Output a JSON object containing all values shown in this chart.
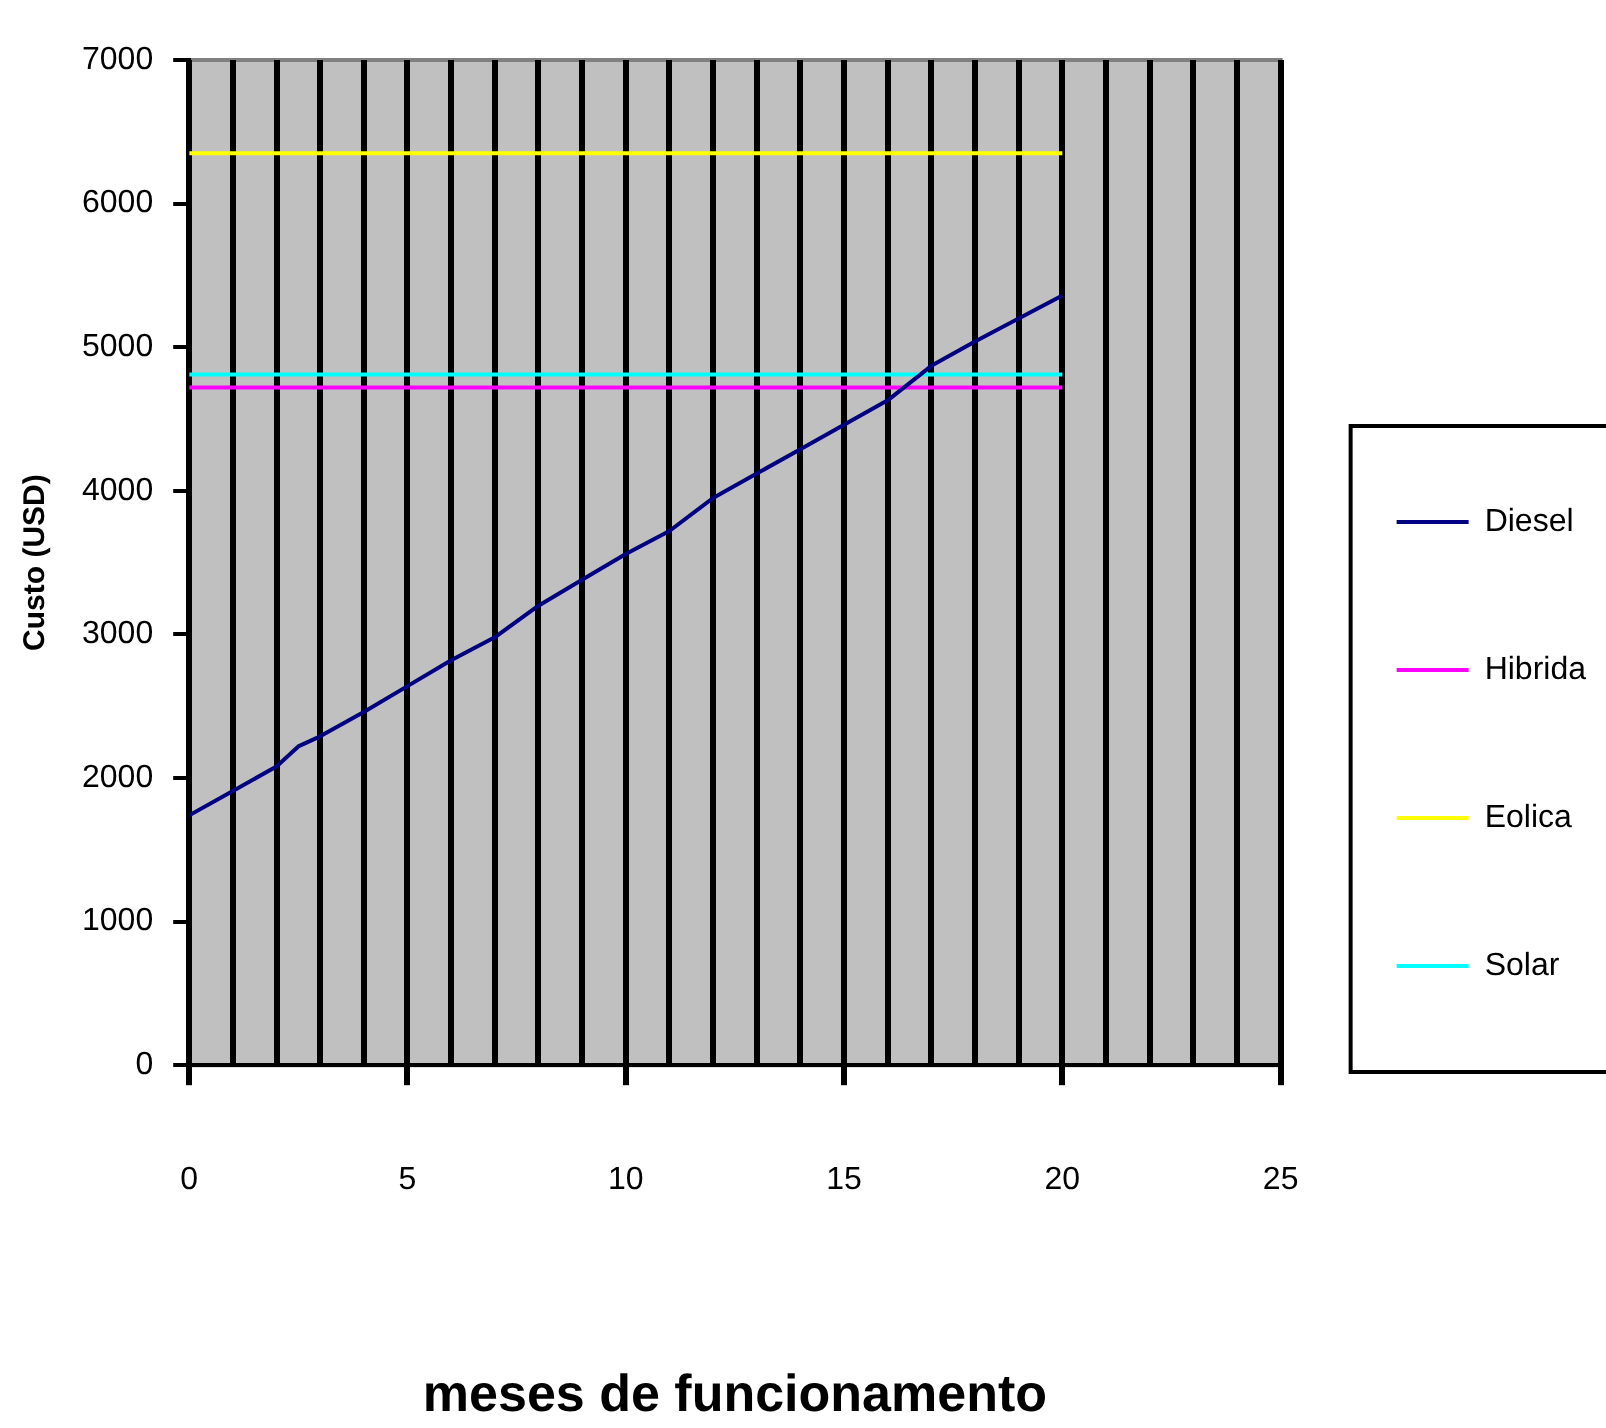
{
  "chart_data": {
    "type": "line",
    "xlabel": "meses de funcionamento",
    "ylabel": "Custo (USD)",
    "x": [
      0,
      1,
      2,
      2.5,
      3,
      4,
      5,
      6,
      7,
      8,
      9,
      10,
      11,
      12,
      13,
      14,
      15,
      16,
      17,
      18,
      19,
      20
    ],
    "series": [
      {
        "name": "Diesel",
        "color": "#000080",
        "values": [
          1740,
          1910,
          2080,
          2220,
          2290,
          2460,
          2640,
          2820,
          2980,
          3200,
          3380,
          3560,
          3720,
          3950,
          4120,
          4290,
          4460,
          4630,
          4870,
          5040,
          5200,
          5360
        ]
      },
      {
        "name": "Hibrida",
        "color": "#ff00ff",
        "values": [
          4720,
          4720,
          4720,
          4720,
          4720,
          4720,
          4720,
          4720,
          4720,
          4720,
          4720,
          4720,
          4720,
          4720,
          4720,
          4720,
          4720,
          4720,
          4720,
          4720,
          4720,
          4720
        ]
      },
      {
        "name": "Eolica",
        "color": "#ffff00",
        "values": [
          6350,
          6350,
          6350,
          6350,
          6350,
          6350,
          6350,
          6350,
          6350,
          6350,
          6350,
          6350,
          6350,
          6350,
          6350,
          6350,
          6350,
          6350,
          6350,
          6350,
          6350,
          6350
        ]
      },
      {
        "name": "Solar",
        "color": "#00ffff",
        "values": [
          4810,
          4810,
          4810,
          4810,
          4810,
          4810,
          4810,
          4810,
          4810,
          4810,
          4810,
          4810,
          4810,
          4810,
          4810,
          4810,
          4810,
          4810,
          4810,
          4810,
          4810,
          4810
        ]
      }
    ],
    "xlim": [
      0,
      25
    ],
    "ylim": [
      0,
      7000
    ],
    "xticks": [
      0,
      {
        "value": 1,
        "label": null
      },
      {
        "value": 2,
        "label": null
      },
      {
        "value": 3,
        "label": null
      },
      {
        "value": 4,
        "label": null
      },
      5,
      {
        "value": 6,
        "label": null
      },
      {
        "value": 7,
        "label": null
      },
      {
        "value": 8,
        "label": null
      },
      {
        "value": 9,
        "label": null
      },
      10,
      {
        "value": 11,
        "label": null
      },
      {
        "value": 12,
        "label": null
      },
      {
        "value": 13,
        "label": null
      },
      {
        "value": 14,
        "label": null
      },
      15,
      {
        "value": 16,
        "label": null
      },
      {
        "value": 17,
        "label": null
      },
      {
        "value": 18,
        "label": null
      },
      {
        "value": 19,
        "label": null
      },
      20,
      {
        "value": 21,
        "label": null
      },
      {
        "value": 22,
        "label": null
      },
      {
        "value": 23,
        "label": null
      },
      {
        "value": 24,
        "label": null
      },
      25
    ],
    "yticks": [
      0,
      1000,
      2000,
      3000,
      4000,
      5000,
      6000,
      7000
    ],
    "grid": "x",
    "legend": "right",
    "marker": "none",
    "line_style": "solid"
  }
}
